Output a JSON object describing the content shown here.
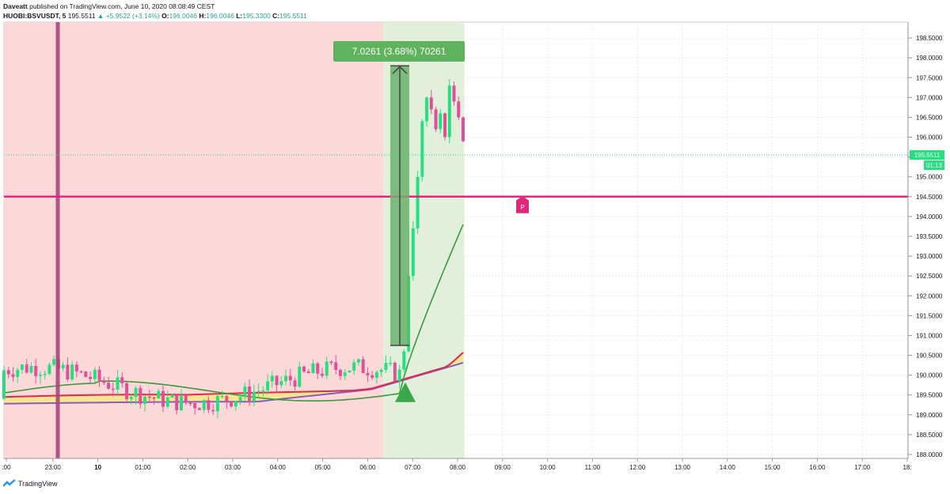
{
  "header": {
    "author": "Daveatt",
    "published_text": "published on TradingView.com, June 10, 2020 08:08:49 CEST",
    "symbol": "HUOBI:BSVUSDT, 5",
    "last": "195.5511",
    "change": "▲ +5.9522 (+3.14%)",
    "o_label": "O:",
    "o_value": "196.0046",
    "h_label": "H:",
    "h_value": "196.0046",
    "l_label": "L:",
    "l_value": "195.3300",
    "c_label": "C:",
    "c_value": "195.5511"
  },
  "footer": {
    "brand": "TradingView"
  },
  "colors": {
    "bull": "#26e07f",
    "bear": "#e04f9a",
    "magenta": "#e0287a",
    "red_zone": "#fcd9d9",
    "green_zone": "#e2f0db",
    "measure_box": "#6ab26a",
    "measure_label": "#5fb35f",
    "ema_green": "#3a9a3a",
    "ema_red": "#e0284f",
    "ema_purple": "#8a5cc0",
    "cloud_yellow": "#f7e58a",
    "last_price_tag": "#26e07f"
  },
  "chart_data": {
    "type": "candlestick",
    "symbol": "HUOBI:BSVUSDT",
    "timeframe": "5",
    "ylim": [
      187.9,
      198.9
    ],
    "y_ticks": [
      "198.5000",
      "198.0000",
      "197.5000",
      "197.0000",
      "196.5000",
      "196.0000",
      "195.5000",
      "195.0000",
      "194.5000",
      "194.0000",
      "193.5000",
      "193.0000",
      "192.5000",
      "192.0000",
      "191.5000",
      "191.0000",
      "190.5000",
      "190.0000",
      "189.5000",
      "189.0000",
      "188.5000",
      "188.0000"
    ],
    "x_ticks": [
      ":00",
      "23:00",
      "10",
      "01:00",
      "02:00",
      "03:00",
      "04:00",
      "05:00",
      "06:00",
      "07:00",
      "08:00",
      "09:00",
      "10:00",
      "11:00",
      "12:00",
      "13:00",
      "14:00",
      "15:00",
      "16:00",
      "17:00",
      "18:"
    ],
    "last_price_label": "195.5511",
    "countdown_label": "01:13",
    "horizontal_level": 194.5,
    "level_marker": "P",
    "measurement": {
      "label": "7.0261 (3.68%) 70261",
      "from_price": 190.75,
      "to_price": 197.8
    },
    "zones": [
      {
        "name": "red-zone",
        "from_hour": -1.1,
        "to_hour": 6.35
      },
      {
        "name": "green-zone",
        "from_hour": 6.35,
        "to_hour": 8.15
      }
    ],
    "vertical_marker_hour": 23.15,
    "buy_signal": {
      "hour": 6.82,
      "price": 189.6
    },
    "candles_summary": {
      "consolidation_range": [
        189.2,
        190.5
      ],
      "breakout_start_hour": 6.75,
      "breakout_high": 197.8,
      "last_close": 195.5511
    }
  }
}
